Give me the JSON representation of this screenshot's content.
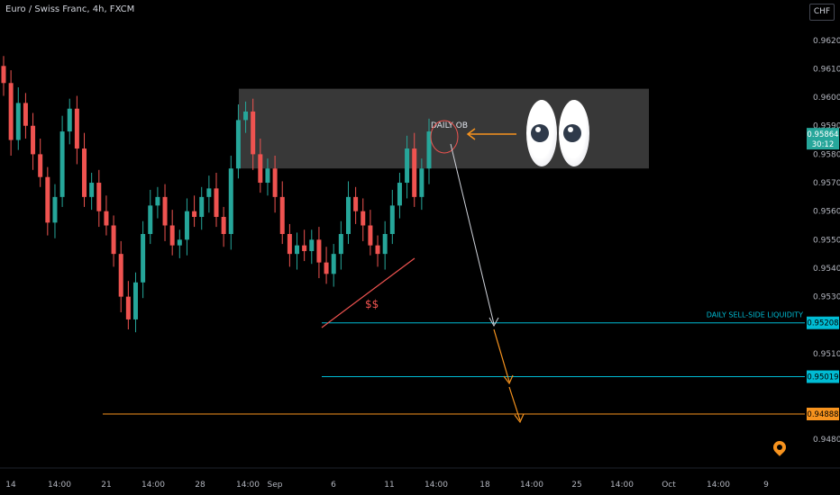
{
  "header": {
    "symbol_title": "Euro / Swiss Franc, 4h, FXCM",
    "currency_button": "CHF"
  },
  "chart_data": {
    "type": "candlestick",
    "symbol": "EURCHF",
    "interval": "4h",
    "ylim": [
      0.9473,
      0.9631
    ],
    "y_ticks": [
      0.962,
      0.961,
      0.96,
      0.959,
      0.958,
      0.957,
      0.956,
      0.955,
      0.954,
      0.953,
      0.951,
      0.948
    ],
    "y_tick_labels": [
      "0.96200",
      "0.96100",
      "0.96000",
      "0.95900",
      "0.95800",
      "0.95700",
      "0.95600",
      "0.95500",
      "0.95400",
      "0.95300",
      "0.95100",
      "0.94800"
    ],
    "x_tick_labels": [
      "14",
      "14:00",
      "21",
      "14:00",
      "28",
      "14:00",
      "Sep",
      "6",
      "11",
      "14:00",
      "18",
      "14:00",
      "25",
      "14:00",
      "Oct",
      "14:00",
      "9"
    ],
    "current_price": {
      "value": "0.95864",
      "countdown": "30:12"
    },
    "close_series": [
      0.9605,
      0.9585,
      0.9598,
      0.959,
      0.958,
      0.9572,
      0.9556,
      0.9565,
      0.9588,
      0.9596,
      0.9582,
      0.9565,
      0.957,
      0.956,
      0.9555,
      0.9545,
      0.953,
      0.9522,
      0.9535,
      0.9552,
      0.9562,
      0.9565,
      0.9555,
      0.9548,
      0.955,
      0.956,
      0.9558,
      0.9565,
      0.9568,
      0.9558,
      0.9552,
      0.9575,
      0.9592,
      0.9595,
      0.958,
      0.957,
      0.9575,
      0.9565,
      0.9552,
      0.9545,
      0.9548,
      0.9546,
      0.955,
      0.9542,
      0.9538,
      0.9545,
      0.9552,
      0.9565,
      0.956,
      0.9555,
      0.9548,
      0.9545,
      0.9552,
      0.9562,
      0.957,
      0.9582,
      0.9565,
      0.9575,
      0.9588
    ],
    "levels": [
      {
        "price": 0.95208,
        "label": "0.95208",
        "color": "#00bcd4",
        "annotation": "DAILY SELL-SIDE LIQUIDITY"
      },
      {
        "price": 0.95019,
        "label": "0.95019",
        "color": "#00bcd4",
        "annotation": ""
      },
      {
        "price": 0.94888,
        "label": "0.94888",
        "color": "#f7931e",
        "annotation": ""
      }
    ],
    "zones": [
      {
        "name": "DAILY OB",
        "price_top": 0.9603,
        "price_bottom": 0.9575
      }
    ],
    "annotations": {
      "ob_label": "DAILY OB",
      "liquidity_label": "$$"
    },
    "colors": {
      "up": "#26a69a",
      "down": "#ef5350",
      "background": "#000000",
      "axis_text": "#b2b5be",
      "level_cyan": "#00bcd4",
      "level_orange": "#f7931e"
    }
  }
}
